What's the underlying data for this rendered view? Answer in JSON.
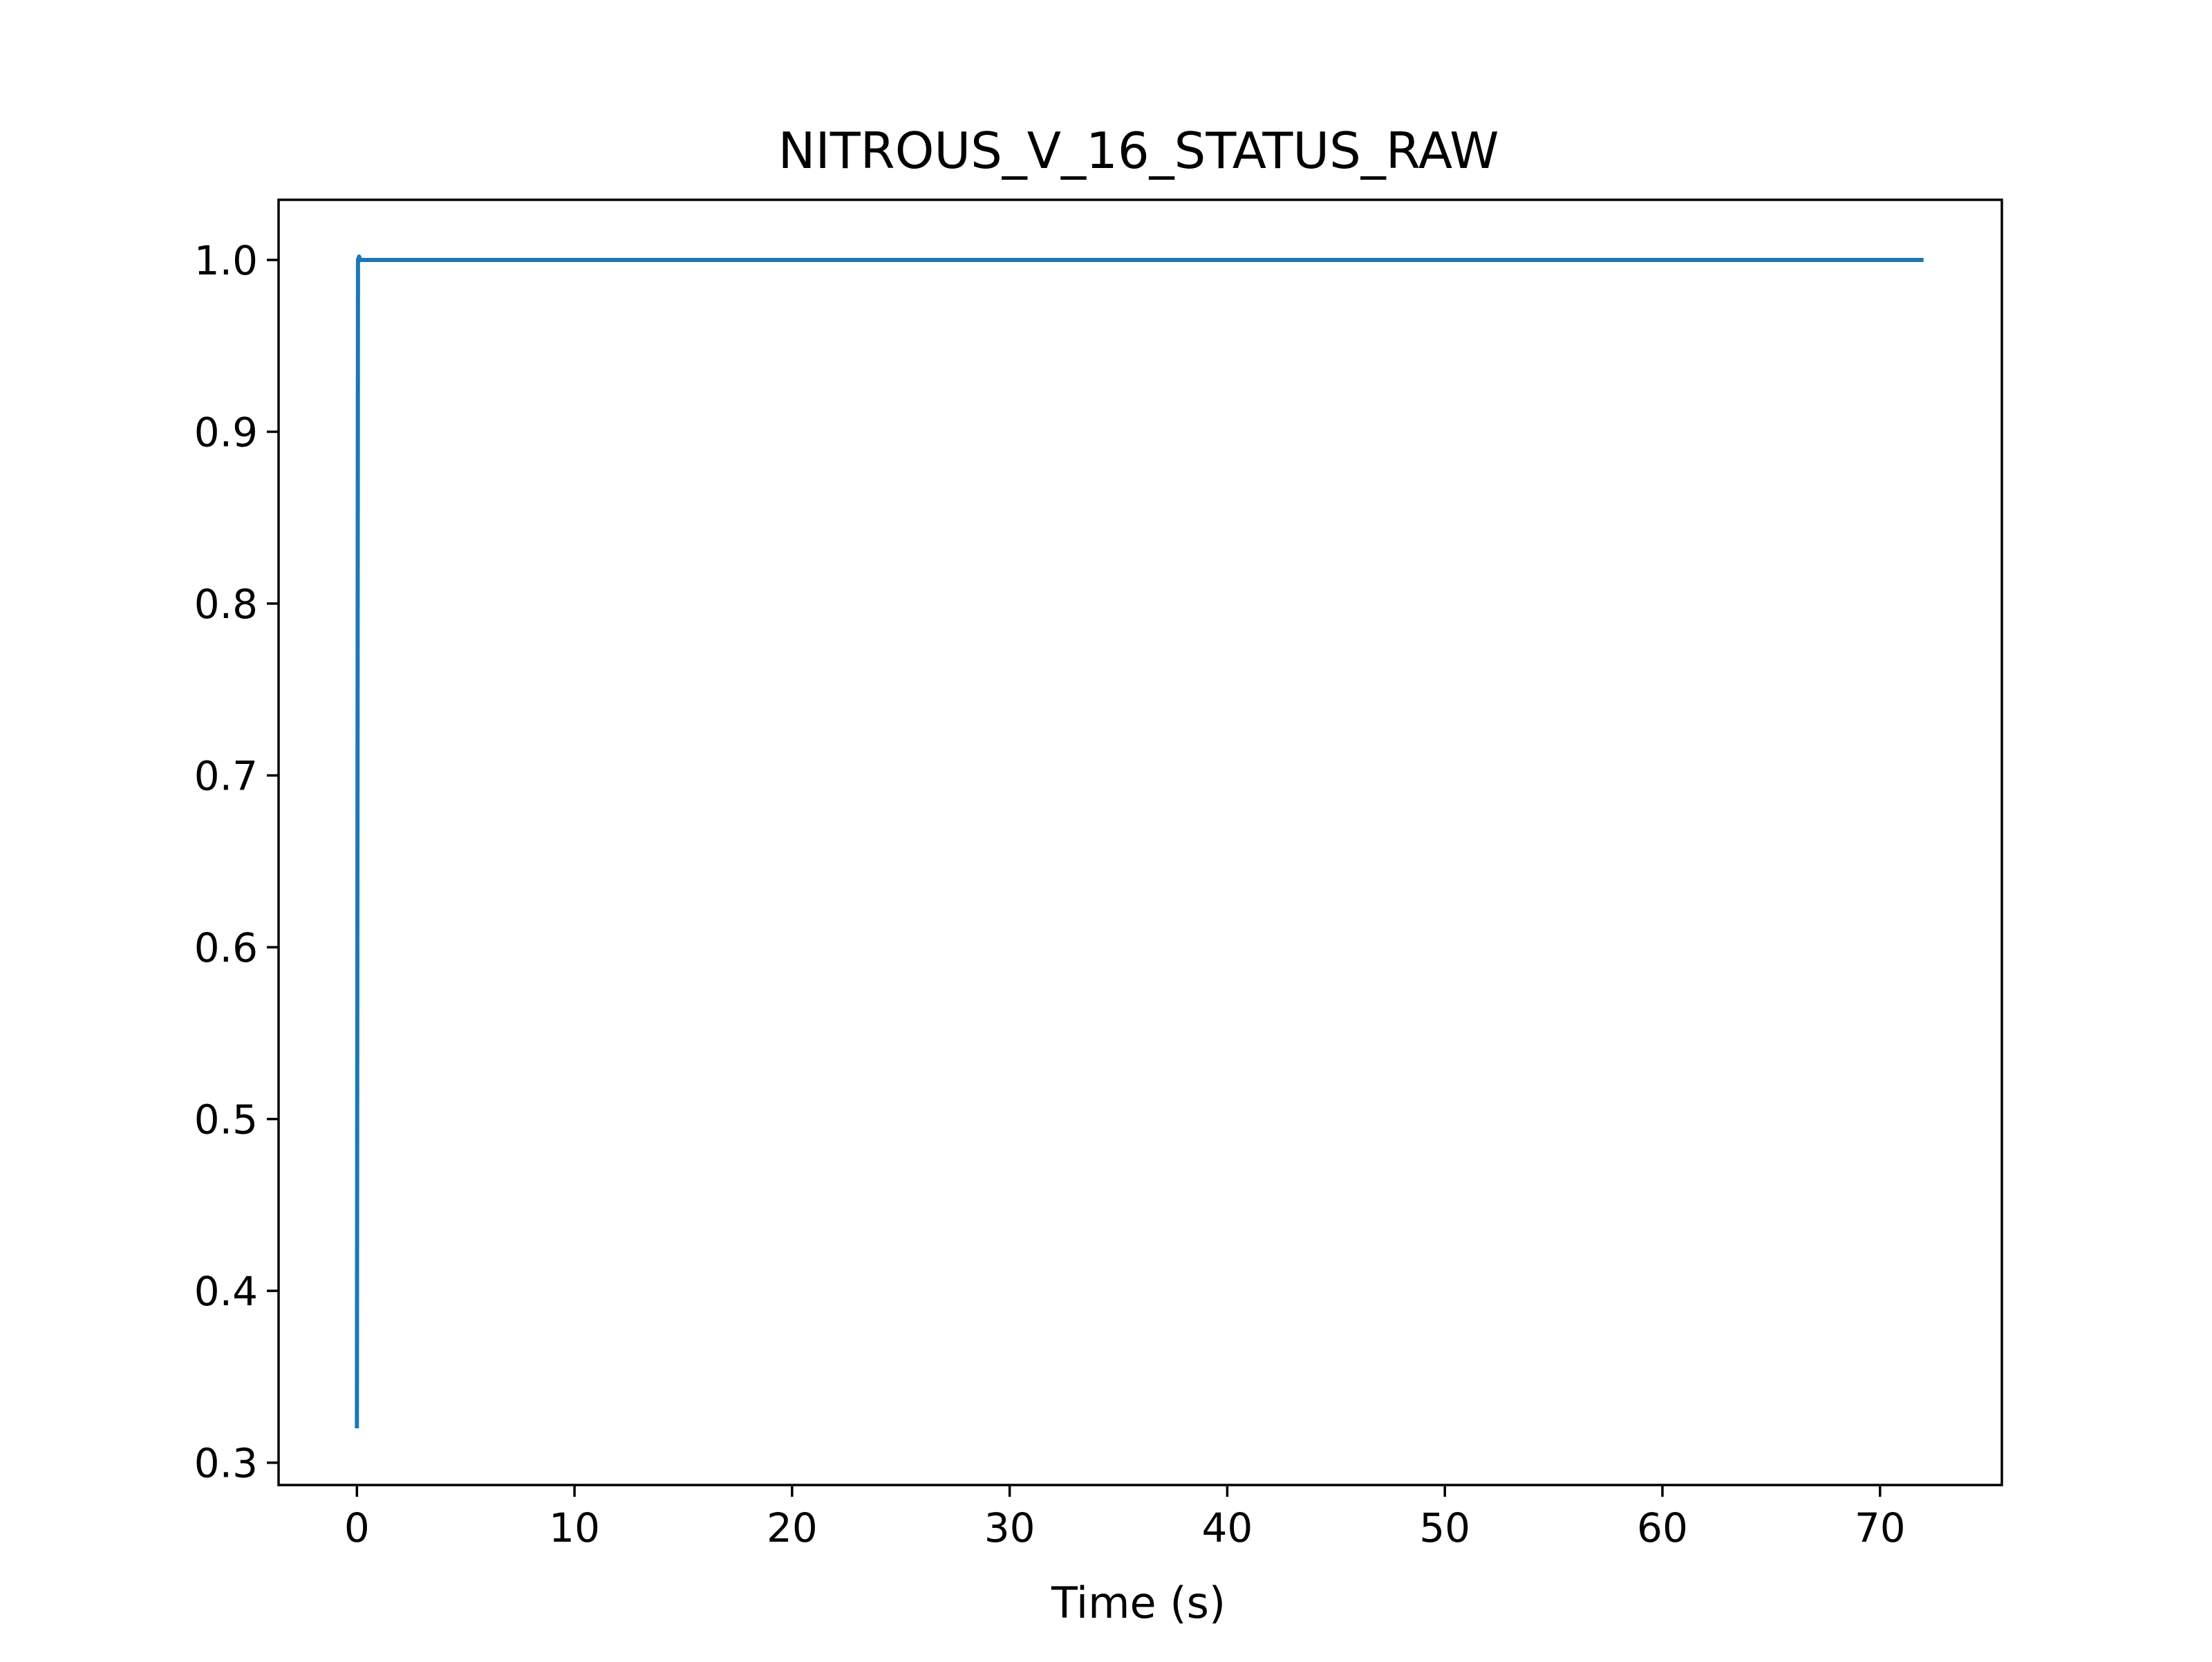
{
  "chart_data": {
    "type": "line",
    "title": "NITROUS_V_16_STATUS_RAW",
    "xlabel": "Time (s)",
    "ylabel": "",
    "xlim": [
      -3.6,
      75.6
    ],
    "ylim": [
      0.287,
      1.035
    ],
    "x_ticks": [
      0,
      10,
      20,
      30,
      40,
      50,
      60,
      70
    ],
    "x_tick_labels": [
      "0",
      "10",
      "20",
      "30",
      "40",
      "50",
      "60",
      "70"
    ],
    "y_ticks": [
      0.3,
      0.4,
      0.5,
      0.6,
      0.7,
      0.8,
      0.9,
      1.0
    ],
    "y_tick_labels": [
      "0.3",
      "0.4",
      "0.5",
      "0.6",
      "0.7",
      "0.8",
      "0.9",
      "1.0"
    ],
    "grid": false,
    "legend": "none",
    "series": [
      {
        "color": "#1f77b4",
        "x": [
          0.0,
          0.05,
          0.1,
          0.15,
          72.0
        ],
        "y": [
          0.32,
          1.0,
          1.002,
          1.0,
          1.0
        ]
      }
    ]
  }
}
